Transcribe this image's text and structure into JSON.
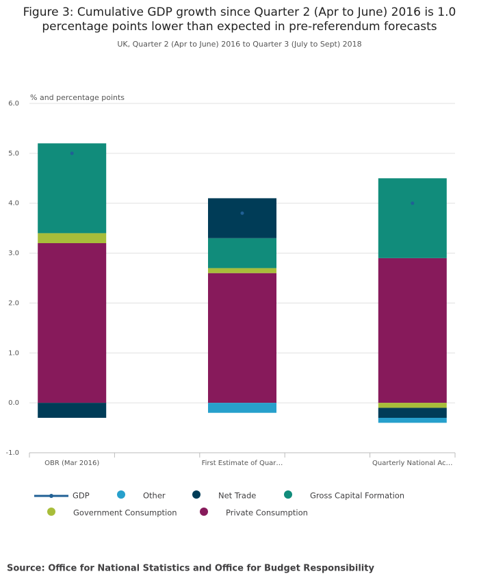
{
  "chart_data": {
    "type": "stacked-bar",
    "title": "Figure 3: Cumulative GDP growth since Quarter 2 (Apr to June) 2016 is 1.0",
    "title_line2": "percentage points lower than expected in pre-referendum forecasts",
    "subtitle": "UK, Quarter 2 (Apr to June) 2016 to Quarter 3 (July to Sept) 2018",
    "y_label": "% and percentage points",
    "source": "Source: Office for National Statistics and Office for Budget Responsibility",
    "categories": [
      "OBR (Mar 2016)",
      "First Estimate of Quar…",
      "Quarterly National Ac…"
    ],
    "ylim": [
      -1,
      6
    ],
    "yticks": [
      {
        "value": -1,
        "label": "-1.0"
      },
      {
        "value": 0,
        "label": "0.0"
      },
      {
        "value": 1,
        "label": "1.0"
      },
      {
        "value": 2,
        "label": "2.0"
      },
      {
        "value": 3,
        "label": "3.0"
      },
      {
        "value": 4,
        "label": "4.0"
      },
      {
        "value": 5,
        "label": "5.0"
      },
      {
        "value": 6,
        "label": "6.0"
      }
    ],
    "grid": true,
    "series": [
      {
        "name": "GDP",
        "color": "#206095",
        "kind": "dot",
        "values": [
          5.0,
          3.8,
          4.0
        ]
      },
      {
        "name": "Other",
        "color": "#27a0cc",
        "values": [
          0,
          -0.2,
          -0.1
        ]
      },
      {
        "name": "Net Trade",
        "color": "#003c57",
        "values": [
          -0.3,
          0.8,
          -0.2
        ]
      },
      {
        "name": "Gross Capital Formation",
        "color": "#118c7b",
        "values": [
          1.8,
          0.6,
          1.6
        ]
      },
      {
        "name": "Government Consumption",
        "color": "#a8bd3a",
        "values": [
          0.2,
          0.1,
          -0.1
        ]
      },
      {
        "name": "Private Consumption",
        "color": "#871a5b",
        "values": [
          3.2,
          2.6,
          2.9
        ]
      }
    ]
  }
}
